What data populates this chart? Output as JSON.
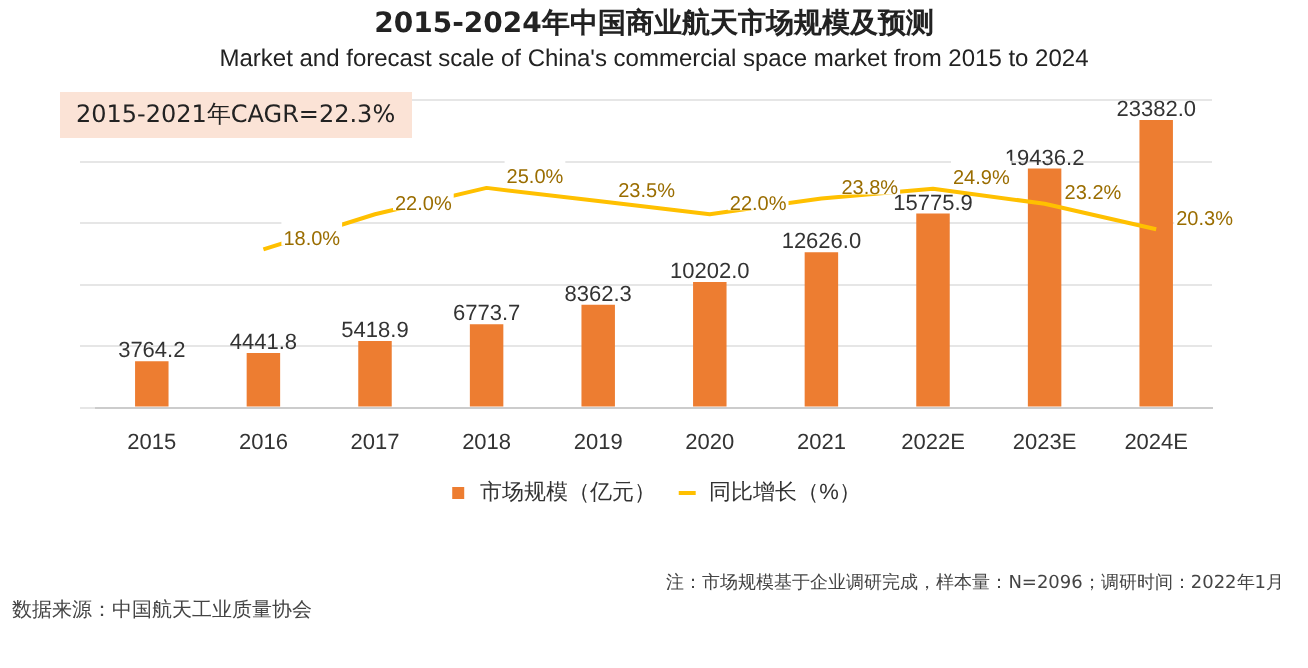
{
  "chart_data": {
    "type": "bar",
    "title": "2015-2024年中国商业航天市场规模及预测",
    "subtitle": "Market and forecast scale of China's commercial space market from 2015 to 2024",
    "categories": [
      "2015",
      "2016",
      "2017",
      "2018",
      "2019",
      "2020",
      "2021",
      "2022E",
      "2023E",
      "2024E"
    ],
    "series": [
      {
        "name": "市场规模（亿元）",
        "color": "#ed7d31",
        "values": [
          3764.2,
          4441.8,
          5418.9,
          6773.7,
          8362.3,
          10202.0,
          12626.0,
          15775.9,
          19436.2,
          23382.0
        ],
        "value_labels": [
          "3764.2",
          "4441.8",
          "5418.9",
          "6773.7",
          "8362.3",
          "10202.0",
          "12626.0",
          "15775.9",
          "19436.2",
          "23382.0"
        ]
      },
      {
        "name": "同比增长（%）",
        "type": "line",
        "axis": "y2",
        "color": "#ffc000",
        "values": [
          null,
          18.0,
          22.0,
          25.0,
          23.5,
          22.0,
          23.8,
          24.9,
          23.2,
          20.3
        ],
        "value_labels": [
          null,
          "18.0%",
          "22.0%",
          "25.0%",
          "23.5%",
          "22.0%",
          "23.8%",
          "24.9%",
          "23.2%",
          "20.3%"
        ]
      }
    ],
    "data_labels": true,
    "grid": "y",
    "legend": "bottom",
    "marker": "none",
    "tick_labels": "x",
    "annotations": [
      "2015-2021年CAGR=22.3%",
      "数据来源：中国航天工业质量协会",
      "注：市场规模基于企业调研完成，样本量：N=2096；调研时间：2022年1月"
    ]
  }
}
